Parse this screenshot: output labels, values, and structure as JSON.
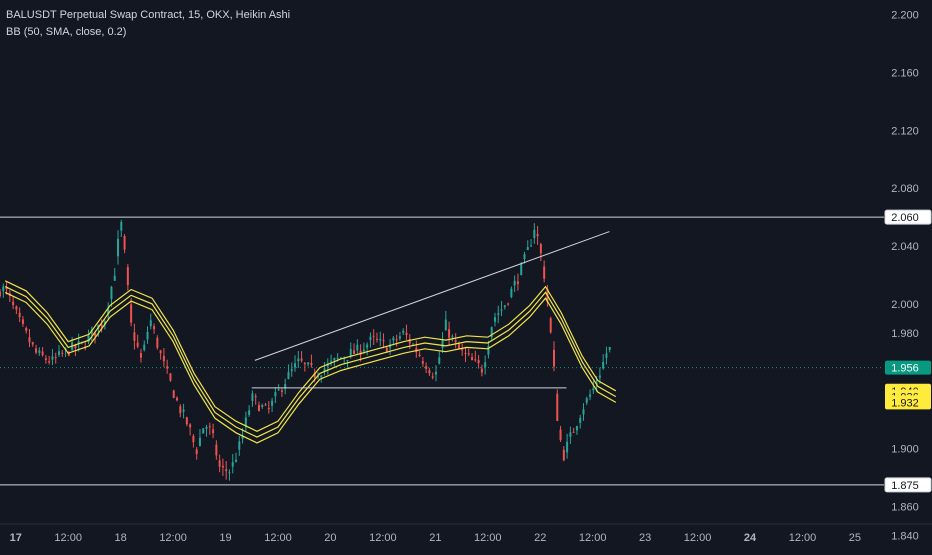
{
  "legend": {
    "symbol_line": "BALUSDT Perpetual Swap Contract, 15, OKX, Heikin Ashi",
    "indicator_line": "BB (50, SMA, close, 0.2)"
  },
  "colors": {
    "background": "#131722",
    "axis_text": "#b2b5be",
    "candle_up": "#26a69a",
    "candle_down": "#ef5350",
    "bb_bands": "#f0e44a",
    "drawn_lines": "#d1d4dc",
    "price_badge": "#089981",
    "bb_badge": "#ffeb3b"
  },
  "chart_data": {
    "type": "candlestick",
    "price_axis_ticks": [
      "2.200",
      "2.160",
      "2.120",
      "2.080",
      "2.040",
      "2.000",
      "1.980",
      "1.900",
      "1.860",
      "1.840"
    ],
    "time_axis_ticks": [
      {
        "label": "17",
        "bold": true,
        "t": 0
      },
      {
        "label": "12:00",
        "bold": false,
        "t": 0.5
      },
      {
        "label": "18",
        "bold": false,
        "t": 1
      },
      {
        "label": "12:00",
        "bold": false,
        "t": 1.5
      },
      {
        "label": "19",
        "bold": false,
        "t": 2
      },
      {
        "label": "12:00",
        "bold": false,
        "t": 2.5
      },
      {
        "label": "20",
        "bold": false,
        "t": 3
      },
      {
        "label": "12:00",
        "bold": false,
        "t": 3.5
      },
      {
        "label": "21",
        "bold": false,
        "t": 4
      },
      {
        "label": "12:00",
        "bold": false,
        "t": 4.5
      },
      {
        "label": "22",
        "bold": false,
        "t": 5
      },
      {
        "label": "12:00",
        "bold": false,
        "t": 5.5
      },
      {
        "label": "23",
        "bold": false,
        "t": 6
      },
      {
        "label": "12:00",
        "bold": false,
        "t": 6.5
      },
      {
        "label": "24",
        "bold": true,
        "t": 7
      },
      {
        "label": "12:00",
        "bold": false,
        "t": 7.5
      },
      {
        "label": "25",
        "bold": false,
        "t": 8
      }
    ],
    "horizontal_levels": [
      {
        "price": 2.06,
        "label": "2.060"
      },
      {
        "price": 1.875,
        "label": "1.875"
      }
    ],
    "current_price": {
      "price": 1.956,
      "label": "1.956"
    },
    "bb_badges": [
      {
        "price": 1.94,
        "label": "1.940"
      },
      {
        "price": 1.936,
        "label": "1.936"
      },
      {
        "price": 1.932,
        "label": "1.932"
      }
    ],
    "trend_lines": [
      {
        "from": {
          "t": 2.28,
          "p": 1.961
        },
        "to": {
          "t": 5.66,
          "p": 2.05
        }
      },
      {
        "from": {
          "t": 2.25,
          "p": 1.942
        },
        "to": {
          "t": 5.25,
          "p": 1.942
        }
      }
    ],
    "price_path": [
      [
        -0.1,
        2.01
      ],
      [
        0.05,
        1.985
      ],
      [
        0.2,
        1.965
      ],
      [
        0.35,
        1.96
      ],
      [
        0.5,
        1.968
      ],
      [
        0.65,
        1.972
      ],
      [
        0.85,
        1.99
      ],
      [
        0.95,
        2.025
      ],
      [
        1.0,
        2.058
      ],
      [
        1.03,
        2.04
      ],
      [
        1.1,
        1.985
      ],
      [
        1.2,
        1.96
      ],
      [
        1.28,
        1.99
      ],
      [
        1.4,
        1.96
      ],
      [
        1.55,
        1.93
      ],
      [
        1.65,
        1.915
      ],
      [
        1.72,
        1.898
      ],
      [
        1.8,
        1.918
      ],
      [
        1.87,
        1.91
      ],
      [
        1.95,
        1.885
      ],
      [
        2.05,
        1.885
      ],
      [
        2.15,
        1.905
      ],
      [
        2.25,
        1.935
      ],
      [
        2.4,
        1.925
      ],
      [
        2.55,
        1.945
      ],
      [
        2.7,
        1.96
      ],
      [
        2.85,
        1.952
      ],
      [
        3.0,
        1.958
      ],
      [
        3.1,
        1.963
      ],
      [
        3.25,
        1.967
      ],
      [
        3.4,
        1.975
      ],
      [
        3.55,
        1.97
      ],
      [
        3.7,
        1.98
      ],
      [
        3.85,
        1.965
      ],
      [
        4.0,
        1.95
      ],
      [
        4.1,
        1.985
      ],
      [
        4.2,
        1.97
      ],
      [
        4.35,
        1.96
      ],
      [
        4.45,
        1.955
      ],
      [
        4.55,
        1.99
      ],
      [
        4.65,
        1.998
      ],
      [
        4.8,
        2.02
      ],
      [
        4.9,
        2.04
      ],
      [
        4.95,
        2.055
      ],
      [
        5.03,
        2.025
      ],
      [
        5.08,
        1.995
      ],
      [
        5.13,
        1.955
      ],
      [
        5.17,
        1.915
      ],
      [
        5.22,
        1.895
      ],
      [
        5.3,
        1.91
      ],
      [
        5.4,
        1.928
      ],
      [
        5.5,
        1.94
      ],
      [
        5.58,
        1.955
      ],
      [
        5.65,
        1.97
      ],
      [
        5.72,
        1.962
      ]
    ],
    "bb_basis": [
      [
        -0.1,
        2.012
      ],
      [
        0.1,
        2.005
      ],
      [
        0.3,
        1.99
      ],
      [
        0.5,
        1.97
      ],
      [
        0.7,
        1.975
      ],
      [
        0.9,
        1.995
      ],
      [
        1.1,
        2.006
      ],
      [
        1.3,
        2.0
      ],
      [
        1.5,
        1.978
      ],
      [
        1.7,
        1.948
      ],
      [
        1.9,
        1.925
      ],
      [
        2.1,
        1.915
      ],
      [
        2.3,
        1.908
      ],
      [
        2.5,
        1.915
      ],
      [
        2.7,
        1.935
      ],
      [
        2.9,
        1.952
      ],
      [
        3.1,
        1.958
      ],
      [
        3.3,
        1.962
      ],
      [
        3.5,
        1.966
      ],
      [
        3.7,
        1.97
      ],
      [
        3.9,
        1.973
      ],
      [
        4.1,
        1.971
      ],
      [
        4.3,
        1.974
      ],
      [
        4.5,
        1.973
      ],
      [
        4.7,
        1.982
      ],
      [
        4.9,
        1.995
      ],
      [
        5.05,
        2.008
      ],
      [
        5.2,
        1.99
      ],
      [
        5.4,
        1.96
      ],
      [
        5.55,
        1.943
      ],
      [
        5.72,
        1.936
      ]
    ],
    "bb_offset": 0.004,
    "y_range": [
      1.83,
      2.21
    ],
    "x_range": [
      -0.15,
      8.22
    ]
  }
}
